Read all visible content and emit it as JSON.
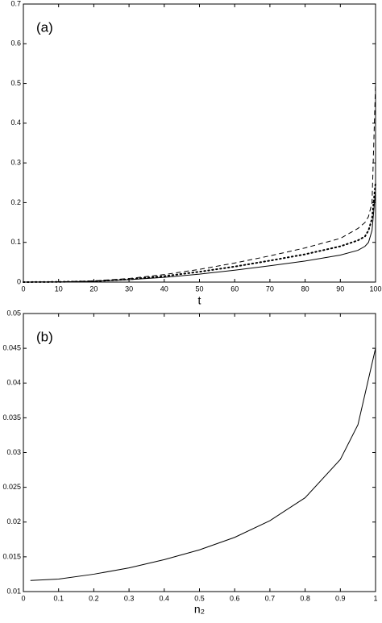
{
  "chart_data": [
    {
      "type": "line",
      "annotation": "(a)",
      "xlabel": "t",
      "x": [
        0,
        10,
        20,
        30,
        40,
        50,
        60,
        70,
        80,
        90,
        95,
        97,
        98,
        99,
        100
      ],
      "series": [
        {
          "color": "#000000",
          "style": "solid",
          "values": [
            0,
            0.0005,
            0.002,
            0.006,
            0.012,
            0.02,
            0.03,
            0.041,
            0.053,
            0.068,
            0.08,
            0.09,
            0.1,
            0.13,
            0.23
          ]
        },
        {
          "color": "#000000",
          "style": "dotted",
          "values": [
            0,
            0.0005,
            0.002,
            0.007,
            0.015,
            0.026,
            0.039,
            0.054,
            0.07,
            0.09,
            0.105,
            0.115,
            0.13,
            0.16,
            0.25
          ]
        },
        {
          "color": "#000000",
          "style": "dashed",
          "values": [
            0,
            0.0007,
            0.003,
            0.009,
            0.019,
            0.032,
            0.048,
            0.066,
            0.086,
            0.11,
            0.135,
            0.15,
            0.165,
            0.2,
            0.5
          ]
        }
      ],
      "xlim": [
        0,
        100
      ],
      "xticks": [
        0,
        10,
        20,
        30,
        40,
        50,
        60,
        70,
        80,
        90,
        100
      ],
      "ylim": [
        0,
        0.7
      ],
      "yticks": [
        0,
        0.1,
        0.2,
        0.3,
        0.4,
        0.5,
        0.6,
        0.7
      ]
    },
    {
      "type": "line",
      "annotation": "(b)",
      "xlabel": "n₂",
      "x": [
        0.02,
        0.1,
        0.2,
        0.3,
        0.4,
        0.5,
        0.6,
        0.7,
        0.8,
        0.9,
        0.95,
        1.0
      ],
      "series": [
        {
          "color": "#000000",
          "style": "solid",
          "values": [
            0.0116,
            0.0118,
            0.0125,
            0.0134,
            0.0146,
            0.016,
            0.0178,
            0.0202,
            0.0235,
            0.029,
            0.034,
            0.045
          ]
        }
      ],
      "xlim": [
        0,
        1
      ],
      "xticks": [
        0,
        0.1,
        0.2,
        0.3,
        0.4,
        0.5,
        0.6,
        0.7,
        0.8,
        0.9,
        1
      ],
      "ylim": [
        0.01,
        0.05
      ],
      "yticks": [
        0.01,
        0.015,
        0.02,
        0.025,
        0.03,
        0.035,
        0.04,
        0.045,
        0.05
      ]
    }
  ]
}
